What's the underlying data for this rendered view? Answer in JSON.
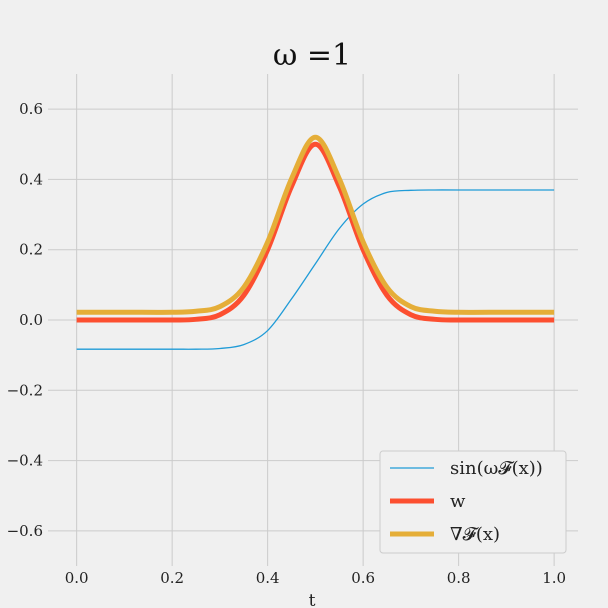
{
  "chart_data": {
    "type": "line",
    "title": "ω =1",
    "xlabel": "t",
    "ylabel": "",
    "xlim": [
      -0.06,
      1.05
    ],
    "ylim": [
      -0.7,
      0.7
    ],
    "xticks": [
      0.0,
      0.2,
      0.4,
      0.6,
      0.8,
      1.0
    ],
    "xtick_labels": [
      "0.0",
      "0.2",
      "0.4",
      "0.6",
      "0.8",
      "1.0"
    ],
    "yticks": [
      -0.6,
      -0.4,
      -0.2,
      0.0,
      0.2,
      0.4,
      0.6
    ],
    "ytick_labels": [
      "−0.6",
      "−0.4",
      "−0.2",
      "0.0",
      "0.2",
      "0.4",
      "0.6"
    ],
    "grid": true,
    "legend_position": "lower-right",
    "series": [
      {
        "name": "sin(ω𝓕(x))",
        "color": "#1f9bd7",
        "x": [
          0.0,
          0.1,
          0.2,
          0.25,
          0.3,
          0.35,
          0.4,
          0.45,
          0.5,
          0.55,
          0.6,
          0.65,
          0.7,
          0.75,
          0.8,
          0.9,
          1.0
        ],
        "y": [
          -0.083,
          -0.083,
          -0.083,
          -0.083,
          -0.081,
          -0.07,
          -0.03,
          0.06,
          0.16,
          0.26,
          0.33,
          0.363,
          0.369,
          0.37,
          0.37,
          0.37,
          0.37
        ]
      },
      {
        "name": "w",
        "color": "#fc4f30",
        "x": [
          0.0,
          0.1,
          0.2,
          0.25,
          0.3,
          0.35,
          0.4,
          0.45,
          0.5,
          0.55,
          0.6,
          0.65,
          0.7,
          0.75,
          0.8,
          0.9,
          1.0
        ],
        "y": [
          0.0,
          0.0,
          0.0,
          0.002,
          0.015,
          0.07,
          0.2,
          0.38,
          0.5,
          0.38,
          0.2,
          0.07,
          0.015,
          0.002,
          0.0,
          0.0,
          0.0
        ]
      },
      {
        "name": "∇𝓕(x)",
        "color": "#e5ae38",
        "x": [
          0.0,
          0.1,
          0.2,
          0.25,
          0.3,
          0.35,
          0.4,
          0.45,
          0.5,
          0.55,
          0.6,
          0.65,
          0.7,
          0.75,
          0.8,
          0.9,
          1.0
        ],
        "y": [
          0.022,
          0.022,
          0.022,
          0.025,
          0.038,
          0.093,
          0.222,
          0.402,
          0.52,
          0.402,
          0.222,
          0.093,
          0.038,
          0.025,
          0.022,
          0.022,
          0.022
        ]
      }
    ]
  }
}
